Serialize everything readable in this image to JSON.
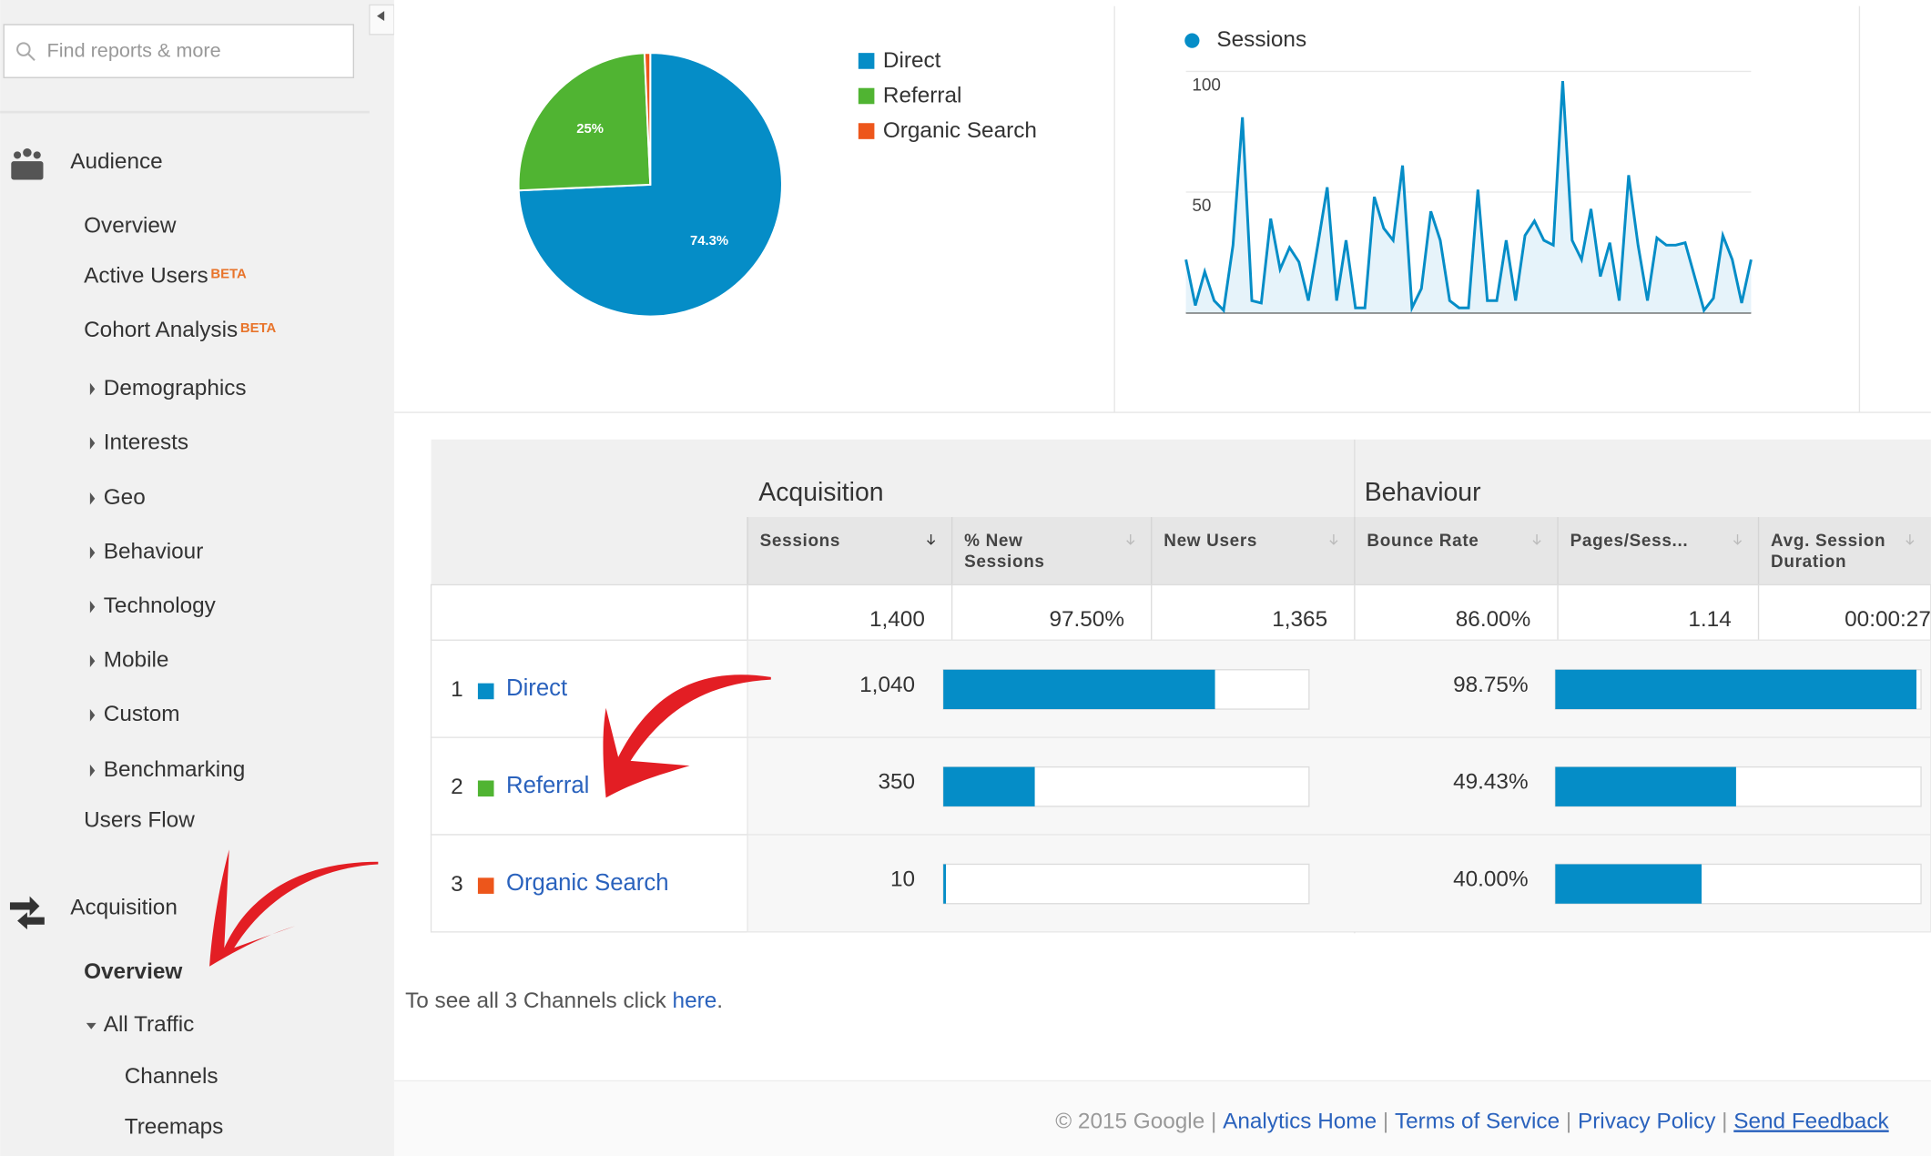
{
  "sidebar": {
    "search": "Find reports & more",
    "badge": "BETA",
    "sections": [
      {
        "title": "Audience",
        "items": [
          "Overview",
          "Active Users",
          "Cohort Analysis",
          "Demographics",
          "Interests",
          "Geo",
          "Behaviour",
          "Technology",
          "Mobile",
          "Custom",
          "Benchmarking",
          "Users Flow"
        ]
      },
      {
        "title": "Acquisition",
        "items": [
          "Overview",
          "All Traffic",
          "Channels",
          "Treemaps"
        ]
      }
    ]
  },
  "pie_chart": {
    "type": "pie",
    "categories": [
      "Direct",
      "Referral",
      "Organic Search"
    ],
    "values": [
      74.3,
      25,
      0.7
    ],
    "value_labels": [
      "74.3%",
      "25%",
      null
    ],
    "colors": [
      "#058dc7",
      "#50b432",
      "#ed561b"
    ]
  },
  "line_chart": {
    "type": "line",
    "series": [
      {
        "name": "Sessions",
        "color": "#058dc7",
        "values": [
          22,
          3,
          17,
          5,
          1,
          28,
          81,
          5,
          4,
          39,
          18,
          27,
          21,
          5,
          28,
          52,
          5,
          30,
          2,
          2,
          48,
          35,
          30,
          61,
          2,
          10,
          42,
          30,
          5,
          2,
          2,
          51,
          5,
          5,
          30,
          5,
          32,
          38,
          30,
          28,
          96,
          30,
          22,
          43,
          15,
          29,
          5,
          57,
          28,
          5,
          31,
          28,
          28,
          29,
          15,
          1,
          6,
          32,
          22,
          4,
          22
        ]
      }
    ],
    "ylim": [
      0,
      100
    ],
    "yticks": [
      0,
      {
        "value": 50,
        "label": "50"
      },
      {
        "value": 100,
        "label": "100"
      }
    ],
    "grid": true
  },
  "table": {
    "groups": [
      "Acquisition",
      "Behaviour"
    ],
    "columns": [
      [
        "Sessions"
      ],
      [
        "% New",
        "Sessions"
      ],
      [
        "New Users"
      ],
      [
        "Bounce Rate"
      ],
      [
        "Pages/Sess..."
      ],
      [
        "Avg. Session",
        "Duration"
      ]
    ],
    "totals": {
      "sessions": {
        "value": 1400,
        "label": "1,400"
      },
      "new_sessions": "97.50%",
      "new_users": "1,365",
      "bounce": "86.00%",
      "pages": "1.14",
      "duration": "00:00:27"
    },
    "rows": [
      {
        "rank": "1",
        "channel": "Direct",
        "sessions": {
          "value": 1040,
          "label": "1,040"
        },
        "bounce": {
          "value": 98.75,
          "label": "98.75%"
        }
      },
      {
        "rank": "2",
        "channel": "Referral",
        "sessions": {
          "value": 350,
          "label": "350"
        },
        "bounce": {
          "value": 49.43,
          "label": "49.43%"
        }
      },
      {
        "rank": "3",
        "channel": "Organic Search",
        "sessions": {
          "value": 10,
          "label": "10"
        },
        "bounce": {
          "value": 40,
          "label": "40.00%"
        }
      }
    ]
  },
  "note": {
    "text": "To see all 3 Channels click",
    "link": "here",
    "end": "."
  },
  "footer": {
    "copyright": "© 2015 Google",
    "separator": "|",
    "links": [
      "Analytics Home",
      "Terms of Service",
      "Privacy Policy",
      "Send Feedback"
    ]
  }
}
